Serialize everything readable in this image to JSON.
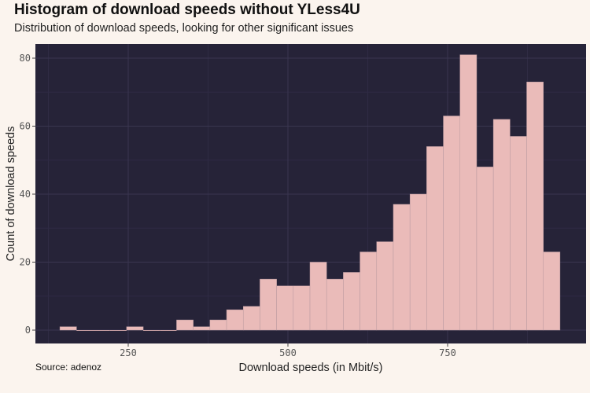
{
  "chart_data": {
    "type": "bar",
    "title": "Histogram of download speeds without YLess4U",
    "subtitle": "Distribution of download speeds, looking for other significant issues",
    "caption": "Source: adenoz",
    "xlabel": "Download speeds (in Mbit/s)",
    "ylabel": "Count of download speeds",
    "xlim": [
      105,
      1000
    ],
    "ylim": [
      -4,
      88
    ],
    "x_ticks": [
      250,
      500,
      750
    ],
    "y_ticks": [
      0,
      20,
      40,
      60,
      80
    ],
    "grid": true,
    "bin_start": 143,
    "bin_width": 26.1,
    "values": [
      1,
      0,
      0,
      0,
      1,
      0,
      0,
      3,
      1,
      3,
      6,
      7,
      15,
      13,
      13,
      20,
      15,
      17,
      23,
      26,
      37,
      40,
      54,
      63,
      81,
      48,
      62,
      57,
      73,
      23
    ],
    "colors": {
      "background": "#fbf4ee",
      "panel": "#262338",
      "bar": "#eabbb9",
      "grid": "#3a3650"
    }
  }
}
